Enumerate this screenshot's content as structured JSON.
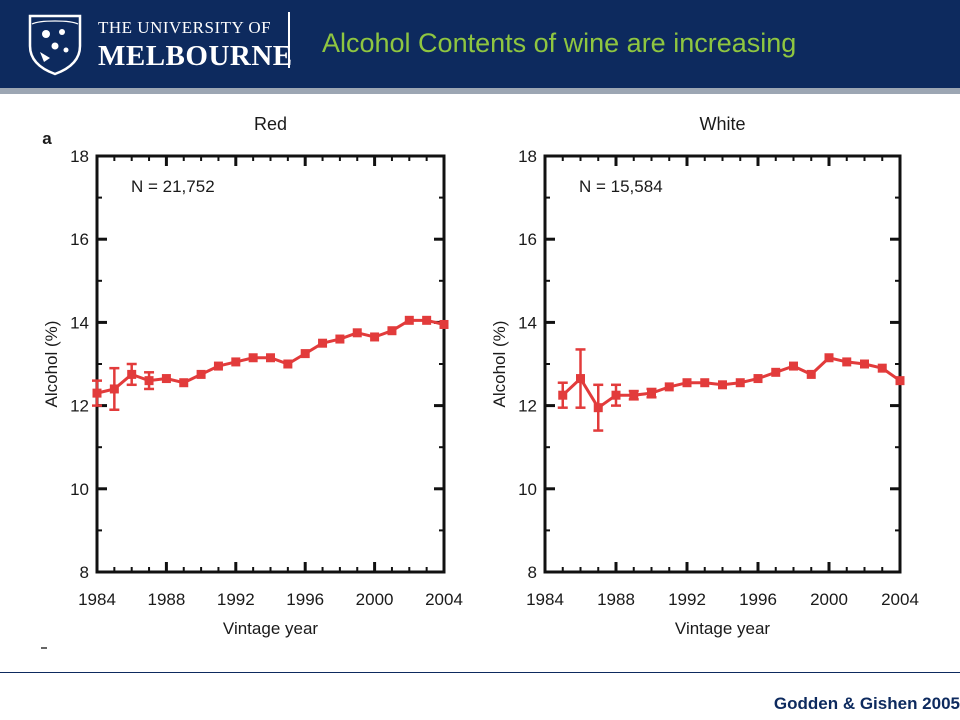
{
  "header": {
    "university_line1": "THE UNIVERSITY OF",
    "university_line2": "MELBOURNE",
    "title": "Alcohol Contents of wine  are increasing"
  },
  "footer": {
    "citation": "Godden & Gishen 2005"
  },
  "colors": {
    "header_bg": "#0d2a5e",
    "title": "#8fc640",
    "series": "#e23b3b"
  },
  "chart_data": [
    {
      "type": "line",
      "panel_label": "a",
      "title": "Red",
      "annotation": "N = 21,752",
      "xlabel": "Vintage year",
      "ylabel": "Alcohol (%)",
      "xlim": [
        1984,
        2004
      ],
      "ylim": [
        8,
        18
      ],
      "xticks": [
        1984,
        1988,
        1992,
        1996,
        2000,
        2004
      ],
      "yticks": [
        8,
        10,
        12,
        14,
        16,
        18
      ],
      "grid": false,
      "series": [
        {
          "x": [
            1984,
            1985,
            1986,
            1987,
            1988,
            1989,
            1990,
            1991,
            1992,
            1993,
            1994,
            1995,
            1996,
            1997,
            1998,
            1999,
            2000,
            2001,
            2002,
            2003,
            2004
          ],
          "y": [
            12.3,
            12.4,
            12.75,
            12.6,
            12.65,
            12.55,
            12.75,
            12.95,
            13.05,
            13.15,
            13.15,
            13.0,
            13.25,
            13.5,
            13.6,
            13.75,
            13.65,
            13.8,
            14.05,
            14.05,
            13.95
          ],
          "err": [
            0.3,
            0.5,
            0.25,
            0.2,
            0.05,
            0.05,
            0.05,
            0.05,
            0.05,
            0.05,
            0.05,
            0.05,
            0.05,
            0.05,
            0.05,
            0.05,
            0.05,
            0.05,
            0.05,
            0.05,
            0.05
          ]
        }
      ]
    },
    {
      "type": "line",
      "title": "White",
      "annotation": "N = 15,584",
      "xlabel": "Vintage year",
      "ylabel": "Alcohol (%)",
      "xlim": [
        1984,
        2004
      ],
      "ylim": [
        8,
        18
      ],
      "xticks": [
        1984,
        1988,
        1992,
        1996,
        2000,
        2004
      ],
      "yticks": [
        8,
        10,
        12,
        14,
        16,
        18
      ],
      "grid": false,
      "series": [
        {
          "x": [
            1985,
            1986,
            1987,
            1988,
            1989,
            1990,
            1991,
            1992,
            1993,
            1994,
            1995,
            1996,
            1997,
            1998,
            1999,
            2000,
            2001,
            2002,
            2003,
            2004
          ],
          "y": [
            12.25,
            12.65,
            11.95,
            12.25,
            12.25,
            12.3,
            12.45,
            12.55,
            12.55,
            12.5,
            12.55,
            12.65,
            12.8,
            12.95,
            12.75,
            13.15,
            13.05,
            13.0,
            12.9,
            12.6
          ],
          "err": [
            0.3,
            0.7,
            0.55,
            0.25,
            0.1,
            0.1,
            0.05,
            0.05,
            0.05,
            0.05,
            0.05,
            0.05,
            0.05,
            0.05,
            0.05,
            0.05,
            0.05,
            0.05,
            0.05,
            0.05
          ]
        }
      ]
    }
  ]
}
